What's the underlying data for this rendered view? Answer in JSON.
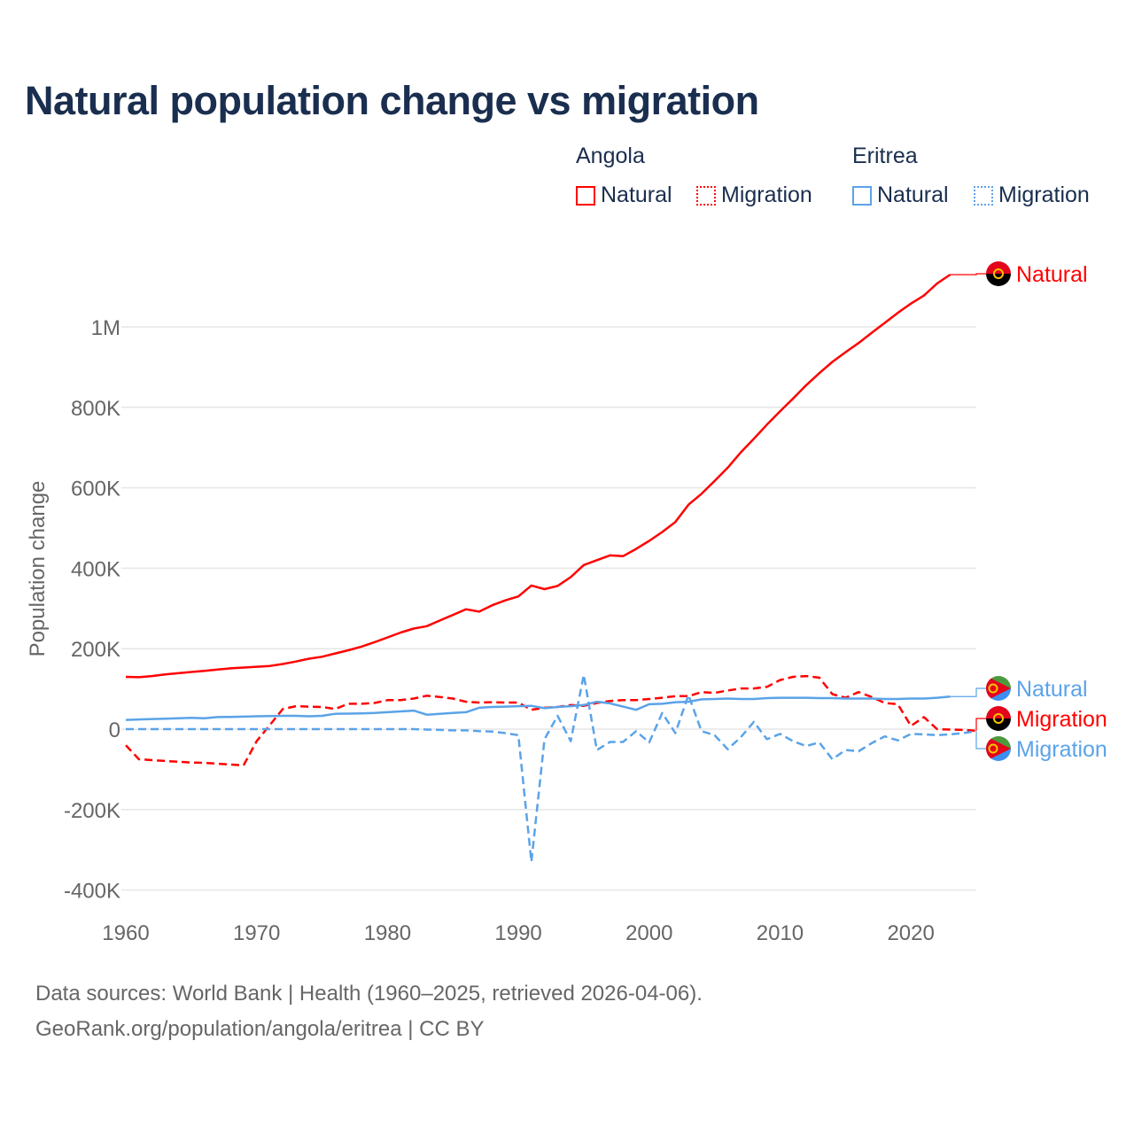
{
  "title": "Natural population change vs migration",
  "legend": {
    "groups": [
      {
        "name": "Angola",
        "items": [
          {
            "label": "Natural",
            "style": "solid"
          },
          {
            "label": "Migration",
            "style": "dotted"
          }
        ],
        "color": "#ff0000"
      },
      {
        "name": "Eritrea",
        "items": [
          {
            "label": "Natural",
            "style": "solid"
          },
          {
            "label": "Migration",
            "style": "dotted"
          }
        ],
        "color": "#5ba3e8"
      }
    ]
  },
  "footer": {
    "line1": "Data sources: World Bank | Health (1960–2025, retrieved 2026-04-06).",
    "line2": "GeoRank.org/population/angola/eritrea | CC BY"
  },
  "chart_data": {
    "type": "line",
    "title": "Natural population change vs migration",
    "ylabel": "Population change",
    "xlabel": "",
    "xlim": [
      1960,
      2025
    ],
    "ylim": [
      -400000,
      1100000
    ],
    "grid": true,
    "x_ticks": [
      1960,
      1970,
      1980,
      1990,
      2000,
      2010,
      2020
    ],
    "y_ticks": [
      {
        "v": -400000,
        "label": "-400K"
      },
      {
        "v": -200000,
        "label": "-200K"
      },
      {
        "v": 0,
        "label": "0"
      },
      {
        "v": 200000,
        "label": "200K"
      },
      {
        "v": 400000,
        "label": "400K"
      },
      {
        "v": 600000,
        "label": "600K"
      },
      {
        "v": 800000,
        "label": "800K"
      },
      {
        "v": 1000000,
        "label": "1M"
      }
    ],
    "series": [
      {
        "name": "Angola Natural",
        "end_label": "Natural",
        "country": "angola",
        "color": "#ff0000",
        "dash": false,
        "start": 1960,
        "values": [
          130000,
          129000,
          132000,
          136000,
          139000,
          142000,
          145000,
          148000,
          151000,
          153000,
          155000,
          157000,
          162000,
          168000,
          175000,
          180000,
          188000,
          196000,
          205000,
          216000,
          228000,
          240000,
          250000,
          256000,
          270000,
          284000,
          298000,
          292000,
          308000,
          320000,
          330000,
          357000,
          348000,
          356000,
          378000,
          408000,
          420000,
          432000,
          430000,
          448000,
          468000,
          490000,
          515000,
          558000,
          585000,
          617000,
          650000,
          688000,
          722000,
          757000,
          790000,
          822000,
          855000,
          885000,
          913000,
          937000,
          960000,
          985000,
          1010000,
          1035000,
          1058000,
          1078000,
          1108000,
          1130000
        ]
      },
      {
        "name": "Angola Migration",
        "end_label": "Migration",
        "country": "angola",
        "color": "#ff0000",
        "dash": true,
        "start": 1960,
        "values": [
          -40000,
          -75000,
          -77000,
          -79000,
          -81000,
          -83000,
          -84000,
          -86000,
          -88000,
          -90000,
          -30000,
          10000,
          50000,
          57000,
          56000,
          55000,
          50000,
          63000,
          63000,
          65000,
          72000,
          72000,
          76000,
          83000,
          80000,
          76000,
          68000,
          66000,
          67000,
          66000,
          66000,
          48000,
          53000,
          55000,
          60000,
          58000,
          65000,
          70000,
          72000,
          72000,
          75000,
          78000,
          82000,
          82000,
          92000,
          90000,
          96000,
          101000,
          101000,
          105000,
          122000,
          130000,
          132000,
          128000,
          87000,
          78000,
          92000,
          80000,
          65000,
          62000,
          8000,
          30000,
          0,
          -1000,
          -2000,
          -4000
        ]
      },
      {
        "name": "Eritrea Natural",
        "end_label": "Natural",
        "country": "eritrea",
        "color": "#5ba3e8",
        "dash": false,
        "start": 1960,
        "values": [
          23000,
          24000,
          25000,
          26000,
          27000,
          28000,
          27000,
          30000,
          30500,
          31000,
          32000,
          32500,
          33000,
          33000,
          32000,
          33000,
          38000,
          38500,
          39000,
          40000,
          42000,
          44000,
          46000,
          36000,
          38000,
          40000,
          42000,
          53000,
          55000,
          56000,
          57000,
          58000,
          52000,
          55000,
          57000,
          60000,
          68000,
          64000,
          56000,
          48000,
          62000,
          63000,
          67000,
          68000,
          74000,
          75000,
          76000,
          75000,
          75000,
          77000,
          78000,
          78000,
          78000,
          77000,
          77000,
          76000,
          76000,
          76000,
          75000,
          75000,
          76000,
          76000,
          78000,
          81000
        ]
      },
      {
        "name": "Eritrea Migration",
        "end_label": "Migration",
        "country": "eritrea",
        "color": "#5ba3e8",
        "dash": true,
        "start": 1960,
        "values": [
          0,
          0,
          0,
          0,
          0,
          0,
          0,
          0,
          0,
          0,
          0,
          0,
          0,
          0,
          0,
          0,
          0,
          0,
          0,
          0,
          0,
          0,
          0,
          -1000,
          -2000,
          -3000,
          -3000,
          -5000,
          -6000,
          -10000,
          -15000,
          -330000,
          -25000,
          33000,
          -30000,
          135000,
          -52000,
          -32000,
          -32000,
          -5000,
          -33000,
          40000,
          -10000,
          85000,
          -5000,
          -15000,
          -50000,
          -20000,
          18000,
          -25000,
          -12000,
          -30000,
          -42000,
          -33000,
          -75000,
          -52000,
          -55000,
          -35000,
          -18000,
          -28000,
          -12000,
          -13000,
          -15000,
          -13000,
          -10000,
          -5000
        ]
      }
    ]
  }
}
